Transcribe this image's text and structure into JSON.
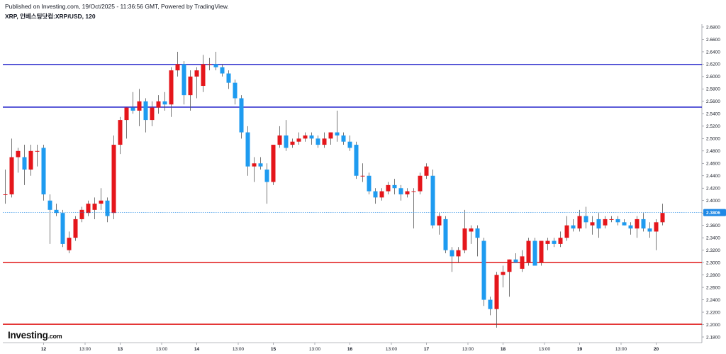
{
  "header": {
    "published": "Published on Investing.com, 19/Oct/2025 - 11:36:56 GMT, Powered by TradingView.",
    "symbol": "XRP, 인베스팅닷컴:XRP/USD, 120"
  },
  "logo": {
    "name": "Investing",
    "suffix": ".com"
  },
  "colors": {
    "up": "#e5161b",
    "down": "#1e9bf0",
    "wick": "#555555",
    "resistance": "#2727cc",
    "support": "#e01818",
    "price_line": "#1e88e5",
    "price_tag": "#1e88e5"
  },
  "chart_data": {
    "type": "candlestick",
    "timeframe": "120",
    "ylim": [
      2.18,
      2.68
    ],
    "y_ticks": [
      "2.1800",
      "2.2000",
      "2.2200",
      "2.2400",
      "2.2600",
      "2.2800",
      "2.3000",
      "2.3200",
      "2.3400",
      "2.3600",
      "2.3800",
      "2.4000",
      "2.4200",
      "2.4400",
      "2.4600",
      "2.4800",
      "2.5000",
      "2.5200",
      "2.5400",
      "2.5600",
      "2.5800",
      "2.6000",
      "2.6200",
      "2.6400",
      "2.6600",
      "2.6800"
    ],
    "x_ticks": [
      {
        "label": "12",
        "bar": 6,
        "day": true
      },
      {
        "label": "13:00",
        "bar": 12.5,
        "day": false
      },
      {
        "label": "13",
        "bar": 18,
        "day": true
      },
      {
        "label": "13:00",
        "bar": 24.5,
        "day": false
      },
      {
        "label": "14",
        "bar": 30,
        "day": true
      },
      {
        "label": "13:00",
        "bar": 36.5,
        "day": false
      },
      {
        "label": "15",
        "bar": 42,
        "day": true
      },
      {
        "label": "13:00",
        "bar": 48.5,
        "day": false
      },
      {
        "label": "16",
        "bar": 54,
        "day": true
      },
      {
        "label": "13:00",
        "bar": 60.5,
        "day": false
      },
      {
        "label": "17",
        "bar": 66,
        "day": true
      },
      {
        "label": "13:00",
        "bar": 72.5,
        "day": false
      },
      {
        "label": "18",
        "bar": 78,
        "day": true
      },
      {
        "label": "13:00",
        "bar": 84.5,
        "day": false
      },
      {
        "label": "19",
        "bar": 90,
        "day": true
      },
      {
        "label": "13:00",
        "bar": 96.5,
        "day": false
      },
      {
        "label": "20",
        "bar": 102,
        "day": true
      }
    ],
    "horizontal_lines": [
      {
        "name": "resistance-upper",
        "value": 2.6195,
        "color": "#2727cc"
      },
      {
        "name": "resistance-lower",
        "value": 2.5507,
        "color": "#2727cc"
      },
      {
        "name": "support-upper",
        "value": 2.3,
        "color": "#e01818"
      },
      {
        "name": "support-lower",
        "value": 2.2005,
        "color": "#e01818"
      }
    ],
    "last_price": {
      "value": 2.3806,
      "label": "2.3806"
    },
    "ohlc": [
      [
        2.41,
        2.45,
        2.395,
        2.41
      ],
      [
        2.41,
        2.5,
        2.405,
        2.47
      ],
      [
        2.47,
        2.485,
        2.445,
        2.48
      ],
      [
        2.47,
        2.49,
        2.425,
        2.45
      ],
      [
        2.45,
        2.49,
        2.44,
        2.48
      ],
      [
        2.48,
        2.49,
        2.455,
        2.48
      ],
      [
        2.485,
        2.49,
        2.4,
        2.41
      ],
      [
        2.4,
        2.41,
        2.33,
        2.385
      ],
      [
        2.385,
        2.395,
        2.375,
        2.38
      ],
      [
        2.38,
        2.385,
        2.325,
        2.33
      ],
      [
        2.32,
        2.35,
        2.315,
        2.34
      ],
      [
        2.34,
        2.375,
        2.335,
        2.37
      ],
      [
        2.37,
        2.39,
        2.365,
        2.385
      ],
      [
        2.38,
        2.4,
        2.375,
        2.395
      ],
      [
        2.385,
        2.405,
        2.37,
        2.395
      ],
      [
        2.395,
        2.42,
        2.385,
        2.4
      ],
      [
        2.4,
        2.405,
        2.365,
        2.375
      ],
      [
        2.38,
        2.505,
        2.37,
        2.49
      ],
      [
        2.49,
        2.535,
        2.475,
        2.53
      ],
      [
        2.53,
        2.55,
        2.5,
        2.55
      ],
      [
        2.55,
        2.575,
        2.54,
        2.545
      ],
      [
        2.545,
        2.58,
        2.52,
        2.56
      ],
      [
        2.56,
        2.565,
        2.51,
        2.53
      ],
      [
        2.53,
        2.56,
        2.52,
        2.55
      ],
      [
        2.55,
        2.57,
        2.54,
        2.56
      ],
      [
        2.56,
        2.575,
        2.545,
        2.555
      ],
      [
        2.555,
        2.615,
        2.535,
        2.61
      ],
      [
        2.61,
        2.64,
        2.6,
        2.62
      ],
      [
        2.62,
        2.625,
        2.555,
        2.57
      ],
      [
        2.57,
        2.61,
        2.545,
        2.6
      ],
      [
        2.6,
        2.615,
        2.565,
        2.61
      ],
      [
        2.585,
        2.635,
        2.575,
        2.62
      ],
      [
        2.62,
        2.63,
        2.61,
        2.62
      ],
      [
        2.62,
        2.64,
        2.61,
        2.615
      ],
      [
        2.615,
        2.62,
        2.6,
        2.605
      ],
      [
        2.605,
        2.61,
        2.58,
        2.59
      ],
      [
        2.59,
        2.595,
        2.555,
        2.565
      ],
      [
        2.565,
        2.57,
        2.5,
        2.51
      ],
      [
        2.51,
        2.52,
        2.44,
        2.455
      ],
      [
        2.455,
        2.47,
        2.43,
        2.46
      ],
      [
        2.46,
        2.47,
        2.45,
        2.455
      ],
      [
        2.45,
        2.46,
        2.395,
        2.43
      ],
      [
        2.43,
        2.49,
        2.425,
        2.49
      ],
      [
        2.49,
        2.52,
        2.485,
        2.505
      ],
      [
        2.505,
        2.53,
        2.48,
        2.485
      ],
      [
        2.49,
        2.5,
        2.485,
        2.495
      ],
      [
        2.495,
        2.51,
        2.49,
        2.5
      ],
      [
        2.5,
        2.51,
        2.495,
        2.505
      ],
      [
        2.505,
        2.51,
        2.49,
        2.5
      ],
      [
        2.5,
        2.505,
        2.485,
        2.49
      ],
      [
        2.49,
        2.51,
        2.485,
        2.5
      ],
      [
        2.5,
        2.51,
        2.49,
        2.51
      ],
      [
        2.51,
        2.545,
        2.495,
        2.505
      ],
      [
        2.505,
        2.51,
        2.49,
        2.495
      ],
      [
        2.495,
        2.505,
        2.48,
        2.485
      ],
      [
        2.49,
        2.495,
        2.435,
        2.44
      ],
      [
        2.44,
        2.46,
        2.43,
        2.44
      ],
      [
        2.44,
        2.445,
        2.41,
        2.415
      ],
      [
        2.415,
        2.42,
        2.395,
        2.405
      ],
      [
        2.405,
        2.42,
        2.4,
        2.415
      ],
      [
        2.415,
        2.43,
        2.41,
        2.425
      ],
      [
        2.425,
        2.435,
        2.41,
        2.42
      ],
      [
        2.42,
        2.425,
        2.4,
        2.41
      ],
      [
        2.41,
        2.42,
        2.405,
        2.415
      ],
      [
        2.415,
        2.42,
        2.355,
        2.415
      ],
      [
        2.415,
        2.445,
        2.41,
        2.44
      ],
      [
        2.44,
        2.46,
        2.435,
        2.455
      ],
      [
        2.44,
        2.45,
        2.355,
        2.36
      ],
      [
        2.36,
        2.38,
        2.345,
        2.375
      ],
      [
        2.37,
        2.375,
        2.315,
        2.32
      ],
      [
        2.32,
        2.325,
        2.285,
        2.31
      ],
      [
        2.31,
        2.325,
        2.3,
        2.32
      ],
      [
        2.32,
        2.385,
        2.315,
        2.355
      ],
      [
        2.35,
        2.36,
        2.33,
        2.355
      ],
      [
        2.355,
        2.36,
        2.31,
        2.34
      ],
      [
        2.335,
        2.34,
        2.23,
        2.24
      ],
      [
        2.24,
        2.245,
        2.215,
        2.225
      ],
      [
        2.225,
        2.285,
        2.195,
        2.28
      ],
      [
        2.28,
        2.295,
        2.26,
        2.285
      ],
      [
        2.285,
        2.305,
        2.245,
        2.305
      ],
      [
        2.305,
        2.315,
        2.3,
        2.3
      ],
      [
        2.29,
        2.32,
        2.285,
        2.31
      ],
      [
        2.3,
        2.34,
        2.295,
        2.335
      ],
      [
        2.335,
        2.34,
        2.3,
        2.295
      ],
      [
        2.3,
        2.335,
        2.295,
        2.335
      ],
      [
        2.33,
        2.34,
        2.32,
        2.335
      ],
      [
        2.335,
        2.34,
        2.325,
        2.33
      ],
      [
        2.33,
        2.35,
        2.325,
        2.34
      ],
      [
        2.34,
        2.375,
        2.335,
        2.36
      ],
      [
        2.36,
        2.37,
        2.35,
        2.355
      ],
      [
        2.355,
        2.385,
        2.35,
        2.375
      ],
      [
        2.375,
        2.39,
        2.355,
        2.365
      ],
      [
        2.36,
        2.375,
        2.345,
        2.365
      ],
      [
        2.37,
        2.38,
        2.34,
        2.355
      ],
      [
        2.36,
        2.375,
        2.355,
        2.37
      ],
      [
        2.37,
        2.375,
        2.365,
        2.37
      ],
      [
        2.37,
        2.375,
        2.36,
        2.365
      ],
      [
        2.365,
        2.37,
        2.36,
        2.36
      ],
      [
        2.36,
        2.365,
        2.345,
        2.355
      ],
      [
        2.355,
        2.375,
        2.34,
        2.37
      ],
      [
        2.37,
        2.38,
        2.35,
        2.355
      ],
      [
        2.355,
        2.365,
        2.34,
        2.35
      ],
      [
        2.35,
        2.37,
        2.32,
        2.365
      ],
      [
        2.365,
        2.395,
        2.36,
        2.38
      ]
    ]
  }
}
